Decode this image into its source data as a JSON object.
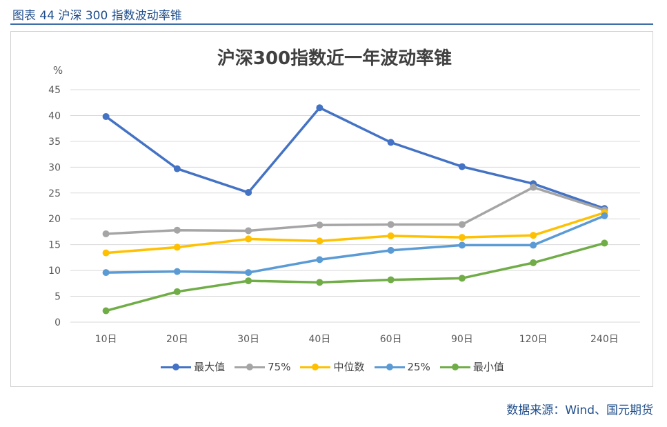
{
  "figure_label": "图表 44  沪深 300 指数波动率锥",
  "source": "数据来源：Wind、国元期货",
  "chart_data": {
    "type": "line",
    "title": "沪深300指数近一年波动率锥",
    "ylabel": "%",
    "ylim": [
      0,
      45
    ],
    "yticks": [
      0,
      5,
      10,
      15,
      20,
      25,
      30,
      35,
      40,
      45
    ],
    "grid": true,
    "legend": "bottom",
    "categories": [
      "10日",
      "20日",
      "30日",
      "40日",
      "60日",
      "90日",
      "120日",
      "240日"
    ],
    "series": [
      {
        "name": "最大值",
        "color": "#4472c4",
        "values": [
          39.8,
          29.7,
          25.1,
          41.5,
          34.8,
          30.1,
          26.8,
          22.0
        ]
      },
      {
        "name": "75%",
        "color": "#a5a5a5",
        "values": [
          17.1,
          17.8,
          17.7,
          18.8,
          18.9,
          18.9,
          26.1,
          21.7
        ]
      },
      {
        "name": "中位数",
        "color": "#ffc000",
        "values": [
          13.4,
          14.5,
          16.1,
          15.7,
          16.7,
          16.4,
          16.8,
          21.2
        ]
      },
      {
        "name": "25%",
        "color": "#5b9bd5",
        "values": [
          9.6,
          9.8,
          9.6,
          12.1,
          13.9,
          14.9,
          14.9,
          20.6
        ]
      },
      {
        "name": "最小值",
        "color": "#70ad47",
        "values": [
          2.2,
          5.9,
          8.0,
          7.7,
          8.2,
          8.5,
          11.5,
          15.3
        ]
      }
    ]
  }
}
